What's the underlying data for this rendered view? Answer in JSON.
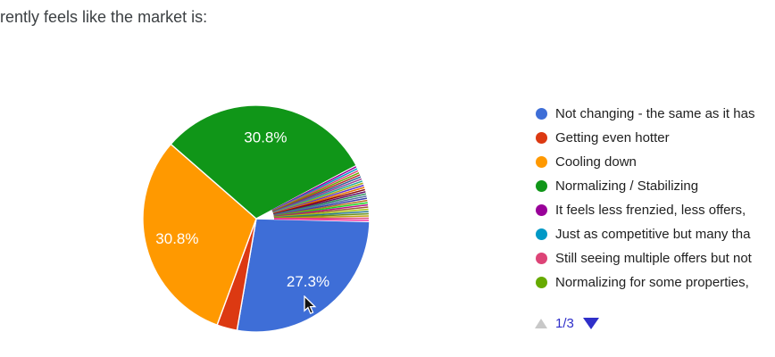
{
  "chart_data": {
    "type": "pie",
    "title": "rently feels like the market is:",
    "legend_position": "right",
    "grid": false,
    "start_angle_deg": 91.5,
    "label_format": "percent",
    "visible_slice_labels": [
      "27.3%",
      "30.8%",
      "30.8%"
    ],
    "slices": [
      {
        "label": "Not changing - the same as it has",
        "pct": 27.3,
        "color": "#3E6ED7"
      },
      {
        "label": "Getting even hotter",
        "pct": 2.9,
        "color": "#DC3912"
      },
      {
        "label": "Cooling down",
        "pct": 30.8,
        "color": "#FF9900"
      },
      {
        "label": "Normalizing / Stabilizing",
        "pct": 30.8,
        "color": "#109618"
      },
      {
        "label": "It feels less frenzied, less offers,",
        "pct": 0.315,
        "color": "#990099"
      },
      {
        "label": "Just as competitive but many tha",
        "pct": 0.315,
        "color": "#0099C6"
      },
      {
        "label": "Still seeing multiple offers but not",
        "pct": 0.315,
        "color": "#DD4477"
      },
      {
        "label": "Normalizing for some properties,",
        "pct": 0.315,
        "color": "#66AA00"
      },
      {
        "pct": 0.315,
        "color": "#B82E2E"
      },
      {
        "pct": 0.315,
        "color": "#316395"
      },
      {
        "pct": 0.315,
        "color": "#994499"
      },
      {
        "pct": 0.315,
        "color": "#22AA99"
      },
      {
        "pct": 0.315,
        "color": "#AAAA11"
      },
      {
        "pct": 0.315,
        "color": "#6633CC"
      },
      {
        "pct": 0.315,
        "color": "#E67300"
      },
      {
        "pct": 0.315,
        "color": "#8B0707"
      },
      {
        "pct": 0.315,
        "color": "#651067"
      },
      {
        "pct": 0.315,
        "color": "#329262"
      },
      {
        "pct": 0.315,
        "color": "#5574A6"
      },
      {
        "pct": 0.315,
        "color": "#3B3EAC"
      },
      {
        "pct": 0.315,
        "color": "#B77322"
      },
      {
        "pct": 0.315,
        "color": "#16D620"
      },
      {
        "pct": 0.315,
        "color": "#B91383"
      },
      {
        "pct": 0.315,
        "color": "#9C5935"
      },
      {
        "pct": 0.315,
        "color": "#A9C413"
      },
      {
        "pct": 0.315,
        "color": "#2A778D"
      },
      {
        "pct": 0.315,
        "color": "#668D1C"
      },
      {
        "pct": 0.315,
        "color": "#BEA413"
      },
      {
        "pct": 0.315,
        "color": "#DD4477"
      },
      {
        "pct": 0.315,
        "color": "#F4359E"
      }
    ]
  },
  "pagination": {
    "page_indicator": "1/3",
    "prev_icon": "triangle-up",
    "next_icon": "triangle-down",
    "active_color": "#2F2FC9",
    "disabled_color": "#C8C8C8"
  }
}
